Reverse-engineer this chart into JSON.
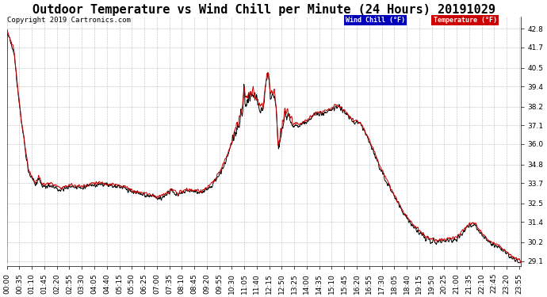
{
  "title": "Outdoor Temperature vs Wind Chill per Minute (24 Hours) 20191029",
  "copyright": "Copyright 2019 Cartronics.com",
  "yticks": [
    29.1,
    30.2,
    31.4,
    32.5,
    33.7,
    34.8,
    36.0,
    37.1,
    38.2,
    39.4,
    40.5,
    41.7,
    42.8
  ],
  "ymin": 28.8,
  "ymax": 43.5,
  "legend_entries": [
    {
      "label": "Wind Chill (°F)",
      "bg_color": "#0000bb",
      "text_color": "#ffffff"
    },
    {
      "label": "Temperature (°F)",
      "bg_color": "#cc0000",
      "text_color": "#ffffff"
    }
  ],
  "line_color": "#cc0000",
  "wind_chill_color": "#000000",
  "bg_color": "#ffffff",
  "grid_color": "#aaaaaa",
  "title_fontsize": 11,
  "copyright_fontsize": 6.5,
  "tick_fontsize": 6.5,
  "xtick_step_minutes": 35
}
